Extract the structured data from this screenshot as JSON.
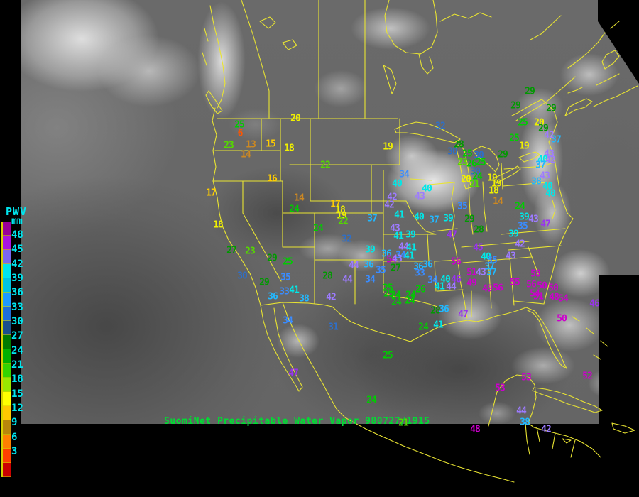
{
  "caption": {
    "text": "SuomiNet Precipitable Water Vapor 980727/1915",
    "color": "#00dd33"
  },
  "legend": {
    "title": "PWV",
    "unit": "mm",
    "text_color": "#00e5ee",
    "labels": [
      "48",
      "45",
      "42",
      "39",
      "36",
      "33",
      "30",
      "27",
      "24",
      "21",
      "18",
      "15",
      "12",
      "9",
      "6",
      "3"
    ],
    "colors": [
      "#990099",
      "#a914e0",
      "#7b68ee",
      "#00e5ee",
      "#00c4e0",
      "#1e9aff",
      "#1e6fd8",
      "#1b4f8c",
      "#007a00",
      "#00b000",
      "#33d400",
      "#99e800",
      "#ffff00",
      "#ffc800",
      "#b8860b",
      "#ff8000",
      "#ff4000",
      "#cc0000"
    ]
  },
  "palette": [
    {
      "min": 48,
      "color": "#cc00cc"
    },
    {
      "min": 45,
      "color": "#9933ee"
    },
    {
      "min": 42,
      "color": "#9d7bff"
    },
    {
      "min": 39,
      "color": "#00e8e8"
    },
    {
      "min": 36,
      "color": "#22b8ff"
    },
    {
      "min": 33,
      "color": "#3a8cff"
    },
    {
      "min": 30,
      "color": "#2e6fc8"
    },
    {
      "min": 27,
      "color": "#009900"
    },
    {
      "min": 24,
      "color": "#00cc00"
    },
    {
      "min": 21,
      "color": "#55d800"
    },
    {
      "min": 18,
      "color": "#f0f000"
    },
    {
      "min": 15,
      "color": "#ffcc00"
    },
    {
      "min": 12,
      "color": "#cc8822"
    },
    {
      "min": 9,
      "color": "#ff8800"
    },
    {
      "min": 6,
      "color": "#ff5500"
    },
    {
      "min": 0,
      "color": "#dd0000"
    }
  ],
  "stations_vxy": [
    [
      25,
      337,
      176
    ],
    [
      6,
      338,
      188
    ],
    [
      23,
      322,
      205
    ],
    [
      13,
      353,
      204
    ],
    [
      14,
      346,
      218
    ],
    [
      15,
      381,
      203
    ],
    [
      18,
      407,
      209
    ],
    [
      20,
      416,
      167
    ],
    [
      22,
      458,
      233
    ],
    [
      16,
      383,
      252
    ],
    [
      17,
      297,
      272
    ],
    [
      18,
      307,
      317
    ],
    [
      19,
      546,
      207
    ],
    [
      32,
      620,
      178
    ],
    [
      14,
      421,
      279
    ],
    [
      24,
      414,
      295
    ],
    [
      24,
      448,
      322
    ],
    [
      32,
      488,
      337
    ],
    [
      17,
      472,
      288
    ],
    [
      18,
      479,
      296
    ],
    [
      19,
      481,
      304
    ],
    [
      22,
      483,
      312
    ],
    [
      37,
      524,
      308
    ],
    [
      41,
      562,
      303
    ],
    [
      42,
      548,
      289
    ],
    [
      40,
      590,
      306
    ],
    [
      37,
      611,
      310
    ],
    [
      43,
      556,
      322
    ],
    [
      41,
      561,
      333
    ],
    [
      39,
      578,
      331
    ],
    [
      44,
      568,
      348
    ],
    [
      41,
      579,
      349
    ],
    [
      34,
      564,
      360
    ],
    [
      39,
      521,
      352
    ],
    [
      36,
      544,
      358
    ],
    [
      27,
      326,
      353
    ],
    [
      23,
      352,
      354
    ],
    [
      29,
      383,
      364
    ],
    [
      25,
      405,
      369
    ],
    [
      30,
      341,
      389
    ],
    [
      29,
      372,
      398
    ],
    [
      35,
      402,
      391
    ],
    [
      33,
      400,
      411
    ],
    [
      41,
      414,
      409
    ],
    [
      36,
      384,
      418
    ],
    [
      38,
      428,
      421
    ],
    [
      28,
      461,
      389
    ],
    [
      42,
      466,
      419
    ],
    [
      34,
      405,
      452
    ],
    [
      31,
      469,
      461
    ],
    [
      47,
      413,
      526
    ],
    [
      44,
      498,
      374
    ],
    [
      36,
      519,
      373
    ],
    [
      35,
      536,
      381
    ],
    [
      34,
      521,
      394
    ],
    [
      44,
      489,
      394
    ],
    [
      54,
      551,
      366
    ],
    [
      43,
      559,
      365
    ],
    [
      41,
      576,
      361
    ],
    [
      36,
      589,
      376
    ],
    [
      36,
      602,
      373
    ],
    [
      33,
      591,
      385
    ],
    [
      27,
      557,
      378
    ],
    [
      25,
      547,
      414
    ],
    [
      26,
      592,
      408
    ],
    [
      24,
      558,
      426
    ],
    [
      24,
      577,
      424
    ],
    [
      28,
      613,
      438
    ],
    [
      36,
      625,
      436
    ],
    [
      34,
      609,
      395
    ],
    [
      47,
      652,
      443
    ],
    [
      41,
      617,
      458
    ],
    [
      24,
      596,
      461
    ],
    [
      34,
      569,
      246
    ],
    [
      40,
      559,
      259
    ],
    [
      42,
      552,
      278
    ],
    [
      40,
      601,
      266
    ],
    [
      43,
      591,
      277
    ],
    [
      35,
      651,
      291
    ],
    [
      29,
      661,
      309
    ],
    [
      18,
      695,
      269
    ],
    [
      14,
      701,
      284
    ],
    [
      28,
      646,
      204
    ],
    [
      30,
      637,
      214
    ],
    [
      25,
      658,
      217
    ],
    [
      30,
      674,
      219
    ],
    [
      23,
      651,
      229
    ],
    [
      26,
      664,
      231
    ],
    [
      25,
      677,
      229
    ],
    [
      30,
      669,
      242
    ],
    [
      24,
      672,
      249
    ],
    [
      20,
      656,
      253
    ],
    [
      21,
      668,
      260
    ],
    [
      19,
      693,
      251
    ],
    [
      19,
      699,
      259
    ],
    [
      29,
      776,
      153
    ],
    [
      25,
      736,
      173
    ],
    [
      20,
      759,
      173
    ],
    [
      29,
      765,
      181
    ],
    [
      25,
      724,
      195
    ],
    [
      42,
      773,
      191
    ],
    [
      37,
      783,
      197
    ],
    [
      19,
      738,
      206
    ],
    [
      29,
      708,
      218
    ],
    [
      43,
      773,
      217
    ],
    [
      40,
      764,
      225
    ],
    [
      42,
      775,
      226
    ],
    [
      37,
      761,
      233
    ],
    [
      43,
      767,
      248
    ],
    [
      38,
      755,
      256
    ],
    [
      40,
      771,
      263
    ],
    [
      40,
      775,
      273
    ],
    [
      24,
      732,
      291
    ],
    [
      29,
      746,
      129
    ],
    [
      29,
      726,
      149
    ],
    [
      39,
      631,
      308
    ],
    [
      47,
      636,
      331
    ],
    [
      28,
      674,
      324
    ],
    [
      39,
      738,
      306
    ],
    [
      43,
      751,
      309
    ],
    [
      35,
      736,
      319
    ],
    [
      47,
      768,
      316
    ],
    [
      39,
      723,
      330
    ],
    [
      42,
      732,
      344
    ],
    [
      43,
      719,
      361
    ],
    [
      45,
      673,
      349
    ],
    [
      40,
      684,
      362
    ],
    [
      35,
      693,
      367
    ],
    [
      37,
      689,
      376
    ],
    [
      56,
      642,
      369
    ],
    [
      51,
      664,
      384
    ],
    [
      43,
      677,
      384
    ],
    [
      37,
      692,
      384
    ],
    [
      40,
      627,
      394
    ],
    [
      46,
      642,
      394
    ],
    [
      41,
      619,
      404
    ],
    [
      44,
      635,
      404
    ],
    [
      49,
      664,
      399
    ],
    [
      49,
      686,
      407
    ],
    [
      56,
      701,
      406
    ],
    [
      55,
      725,
      398
    ],
    [
      58,
      754,
      386
    ],
    [
      56,
      748,
      401
    ],
    [
      50,
      763,
      403
    ],
    [
      54,
      753,
      414
    ],
    [
      50,
      779,
      406
    ],
    [
      51,
      758,
      418
    ],
    [
      48,
      780,
      419
    ],
    [
      54,
      793,
      421
    ],
    [
      46,
      837,
      428
    ],
    [
      50,
      791,
      449
    ],
    [
      25,
      546,
      406
    ],
    [
      24,
      557,
      416
    ],
    [
      24,
      578,
      416
    ],
    [
      25,
      546,
      501
    ],
    [
      24,
      523,
      564
    ],
    [
      53,
      741,
      532
    ],
    [
      53,
      704,
      547
    ],
    [
      52,
      827,
      530
    ],
    [
      44,
      734,
      579
    ],
    [
      38,
      739,
      595
    ],
    [
      48,
      669,
      605
    ],
    [
      42,
      769,
      605
    ],
    [
      21,
      568,
      596
    ]
  ]
}
